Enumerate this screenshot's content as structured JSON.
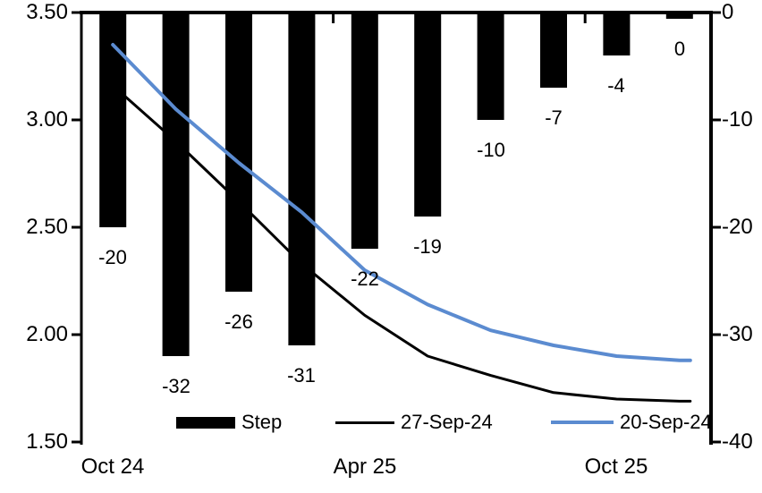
{
  "chart_data": {
    "type": "combo-bar-line",
    "title": "",
    "num_categories": 10,
    "x_tick_labels": [
      {
        "label": "Oct 24",
        "category": 0
      },
      {
        "label": "Apr 25",
        "category": 4
      },
      {
        "label": "Oct 25",
        "category": 8
      }
    ],
    "left_axis": {
      "min": 1.5,
      "max": 3.5,
      "tick_labels": [
        "3.50",
        "3.00",
        "2.50",
        "2.00",
        "1.50"
      ]
    },
    "right_axis": {
      "min": -40,
      "max": 0,
      "tick_labels": [
        "0",
        "-10",
        "-20",
        "-30",
        "-40"
      ]
    },
    "bar_series": {
      "name": "Step",
      "axis": "right",
      "color": "#000000",
      "values": [
        -20,
        -32,
        -26,
        -31,
        -22,
        -19,
        -10,
        -7,
        -4,
        0
      ],
      "data_labels": [
        "-20",
        "-32",
        "-26",
        "-31",
        "-22",
        "-19",
        "-10",
        "-7",
        "-4",
        "0"
      ]
    },
    "line_series": [
      {
        "name": "27-Sep-24",
        "axis": "left",
        "color": "#000000",
        "stroke_width": 3,
        "values": [
          3.16,
          2.9,
          2.62,
          2.33,
          2.09,
          1.9,
          1.81,
          1.73,
          1.7,
          1.69
        ]
      },
      {
        "name": "20-Sep-24",
        "axis": "left",
        "color": "#5B8BD0",
        "stroke_width": 4,
        "values": [
          3.35,
          3.05,
          2.8,
          2.57,
          2.3,
          2.14,
          2.02,
          1.95,
          1.9,
          1.88
        ]
      }
    ],
    "legend": [
      {
        "label": "Step",
        "swatch": "bar",
        "color": "#000000"
      },
      {
        "label": "27-Sep-24",
        "swatch": "line",
        "color": "#000000"
      },
      {
        "label": "20-Sep-24",
        "swatch": "line",
        "color": "#5B8BD0"
      }
    ],
    "grid": false,
    "legend_position": "bottom"
  }
}
